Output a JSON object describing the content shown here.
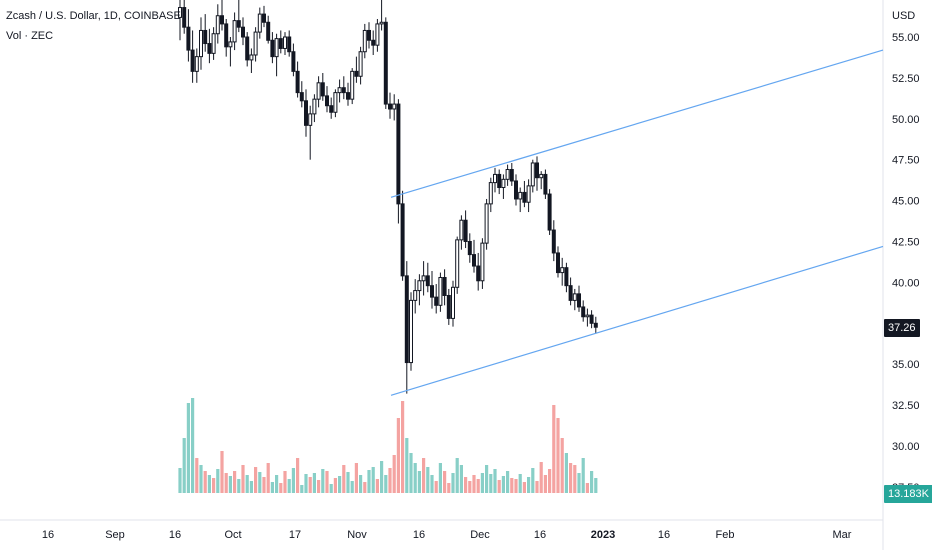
{
  "legend": {
    "symbol": "Zcash / U.S. Dollar, 1D, COINBASE",
    "volume": "Vol · ZEC"
  },
  "price_axis": {
    "currency": "USD",
    "last_price": "37.26",
    "last_volume": "13.183K"
  },
  "colors": {
    "candle": "#131722",
    "channel_line": "#64a6f0",
    "volume_up": "#88cfc7",
    "volume_down": "#f4a3a1",
    "last_price_bg": "#131722",
    "last_volume_bg": "#26a69a"
  },
  "chart_data": {
    "type": "candlestick",
    "title": "Zcash / U.S. Dollar, 1D, COINBASE",
    "xlabel": "",
    "ylabel": "USD",
    "y_ticks": [
      "55.00",
      "52.50",
      "50.00",
      "47.50",
      "45.00",
      "42.50",
      "40.00",
      "35.00",
      "32.50",
      "30.00",
      "27.50"
    ],
    "x_ticks": [
      "16",
      "Sep",
      "16",
      "Oct",
      "17",
      "Nov",
      "16",
      "Dec",
      "16",
      "2023",
      "16",
      "Feb",
      "Mar"
    ],
    "ylim": [
      25.5,
      56.5
    ],
    "grid": false,
    "candles": [
      [
        56.2,
        57.5,
        54.8,
        56.8
      ],
      [
        56.8,
        58.0,
        55.2,
        55.6
      ],
      [
        55.6,
        56.7,
        53.5,
        54.2
      ],
      [
        54.2,
        55.4,
        52.2,
        52.9
      ],
      [
        52.9,
        54.3,
        52.2,
        53.8
      ],
      [
        53.8,
        56.2,
        53.0,
        55.4
      ],
      [
        55.4,
        56.4,
        54.1,
        54.6
      ],
      [
        54.6,
        55.5,
        53.4,
        54.0
      ],
      [
        54.0,
        55.6,
        53.6,
        55.2
      ],
      [
        55.2,
        57.0,
        54.6,
        56.3
      ],
      [
        56.3,
        57.4,
        55.4,
        55.8
      ],
      [
        55.8,
        56.1,
        53.8,
        54.4
      ],
      [
        54.4,
        55.0,
        53.2,
        54.7
      ],
      [
        54.7,
        56.5,
        54.2,
        56.0
      ],
      [
        56.0,
        57.4,
        55.3,
        55.6
      ],
      [
        55.6,
        56.2,
        54.5,
        55.0
      ],
      [
        55.0,
        55.3,
        53.2,
        53.6
      ],
      [
        53.6,
        54.3,
        52.8,
        53.9
      ],
      [
        53.9,
        55.6,
        53.5,
        55.3
      ],
      [
        55.3,
        56.8,
        54.9,
        56.4
      ],
      [
        56.4,
        56.9,
        55.6,
        55.9
      ],
      [
        55.9,
        56.3,
        54.6,
        54.8
      ],
      [
        54.8,
        55.3,
        53.4,
        53.8
      ],
      [
        53.8,
        55.2,
        52.6,
        54.9
      ],
      [
        54.9,
        55.4,
        54.0,
        54.3
      ],
      [
        54.3,
        55.3,
        53.9,
        55.0
      ],
      [
        55.0,
        55.4,
        53.8,
        54.1
      ],
      [
        54.1,
        54.6,
        52.6,
        52.9
      ],
      [
        52.9,
        53.5,
        51.3,
        51.6
      ],
      [
        51.6,
        52.3,
        50.7,
        51.1
      ],
      [
        51.1,
        51.8,
        48.9,
        49.6
      ],
      [
        49.6,
        50.8,
        47.5,
        50.3
      ],
      [
        50.3,
        51.5,
        49.8,
        51.2
      ],
      [
        51.2,
        52.6,
        50.7,
        52.2
      ],
      [
        52.2,
        52.8,
        51.1,
        51.4
      ],
      [
        51.4,
        52.0,
        50.4,
        50.8
      ],
      [
        50.8,
        51.3,
        50.0,
        50.4
      ],
      [
        50.4,
        51.8,
        50.1,
        51.6
      ],
      [
        51.6,
        52.4,
        51.0,
        51.9
      ],
      [
        51.9,
        52.6,
        51.2,
        51.6
      ],
      [
        51.6,
        52.2,
        50.8,
        51.2
      ],
      [
        51.2,
        53.1,
        50.9,
        52.9
      ],
      [
        52.9,
        53.8,
        52.2,
        52.6
      ],
      [
        52.6,
        54.4,
        52.1,
        54.1
      ],
      [
        54.1,
        55.8,
        53.7,
        55.4
      ],
      [
        55.4,
        55.9,
        54.3,
        54.8
      ],
      [
        54.8,
        55.4,
        53.9,
        54.5
      ],
      [
        54.5,
        56.1,
        54.1,
        55.8
      ],
      [
        55.8,
        57.5,
        55.4,
        55.9
      ],
      [
        55.9,
        56.2,
        50.6,
        50.9
      ],
      [
        50.9,
        51.6,
        50.0,
        50.6
      ],
      [
        50.6,
        51.5,
        49.9,
        50.9
      ],
      [
        50.9,
        51.2,
        43.6,
        44.8
      ],
      [
        44.8,
        45.6,
        40.1,
        40.4
      ],
      [
        40.4,
        41.3,
        33.2,
        35.1
      ],
      [
        35.1,
        39.4,
        34.6,
        38.9
      ],
      [
        38.9,
        40.2,
        38.1,
        39.5
      ],
      [
        39.5,
        40.5,
        38.6,
        40.1
      ],
      [
        40.1,
        41.3,
        39.2,
        40.4
      ],
      [
        40.4,
        41.2,
        39.4,
        39.8
      ],
      [
        39.8,
        40.7,
        38.4,
        39.1
      ],
      [
        39.1,
        39.9,
        38.1,
        38.6
      ],
      [
        38.6,
        40.6,
        38.2,
        40.3
      ],
      [
        40.3,
        40.8,
        38.6,
        39.2
      ],
      [
        39.2,
        39.6,
        37.4,
        37.8
      ],
      [
        37.8,
        40.1,
        37.3,
        39.7
      ],
      [
        39.7,
        42.8,
        39.3,
        42.6
      ],
      [
        42.6,
        44.1,
        42.0,
        43.8
      ],
      [
        43.8,
        44.4,
        42.1,
        42.5
      ],
      [
        42.5,
        43.0,
        41.2,
        41.7
      ],
      [
        41.7,
        42.6,
        40.6,
        41.0
      ],
      [
        41.0,
        41.8,
        39.5,
        40.1
      ],
      [
        40.1,
        42.7,
        39.6,
        42.4
      ],
      [
        42.4,
        45.1,
        42.0,
        44.8
      ],
      [
        44.8,
        46.4,
        44.3,
        46.1
      ],
      [
        46.1,
        47.0,
        45.5,
        46.6
      ],
      [
        46.6,
        46.9,
        45.4,
        45.8
      ],
      [
        45.8,
        46.6,
        45.1,
        46.3
      ],
      [
        46.3,
        47.2,
        45.9,
        46.9
      ],
      [
        46.9,
        47.3,
        45.9,
        46.2
      ],
      [
        46.2,
        46.6,
        44.7,
        45.1
      ],
      [
        45.1,
        45.8,
        44.3,
        45.5
      ],
      [
        45.5,
        46.2,
        44.6,
        44.9
      ],
      [
        44.9,
        46.3,
        44.3,
        45.9
      ],
      [
        45.9,
        47.5,
        45.5,
        47.3
      ],
      [
        47.3,
        47.7,
        45.6,
        46.4
      ],
      [
        46.4,
        46.8,
        45.7,
        46.6
      ],
      [
        46.6,
        46.9,
        45.1,
        45.4
      ],
      [
        45.4,
        45.7,
        42.9,
        43.2
      ],
      [
        43.2,
        43.8,
        41.3,
        41.8
      ],
      [
        41.8,
        42.2,
        40.3,
        40.6
      ],
      [
        40.6,
        41.5,
        39.8,
        40.9
      ],
      [
        40.9,
        41.2,
        39.4,
        39.8
      ],
      [
        39.8,
        40.3,
        38.6,
        38.9
      ],
      [
        38.9,
        39.6,
        38.3,
        39.3
      ],
      [
        39.3,
        39.8,
        38.2,
        38.5
      ],
      [
        38.5,
        38.9,
        37.6,
        37.9
      ],
      [
        37.9,
        38.4,
        37.3,
        38.0
      ],
      [
        38.0,
        38.3,
        37.2,
        37.5
      ],
      [
        37.5,
        37.9,
        36.9,
        37.26
      ]
    ],
    "volume": [
      [
        0.25,
        1
      ],
      [
        0.55,
        1
      ],
      [
        0.9,
        1
      ],
      [
        0.95,
        1
      ],
      [
        0.35,
        0
      ],
      [
        0.28,
        1
      ],
      [
        0.22,
        0
      ],
      [
        0.18,
        1
      ],
      [
        0.15,
        0
      ],
      [
        0.24,
        1
      ],
      [
        0.42,
        0
      ],
      [
        0.2,
        0
      ],
      [
        0.17,
        1
      ],
      [
        0.22,
        0
      ],
      [
        0.14,
        1
      ],
      [
        0.28,
        0
      ],
      [
        0.18,
        1
      ],
      [
        0.12,
        1
      ],
      [
        0.26,
        0
      ],
      [
        0.21,
        1
      ],
      [
        0.16,
        0
      ],
      [
        0.3,
        0
      ],
      [
        0.11,
        1
      ],
      [
        0.18,
        1
      ],
      [
        0.1,
        0
      ],
      [
        0.22,
        0
      ],
      [
        0.14,
        1
      ],
      [
        0.25,
        1
      ],
      [
        0.35,
        0
      ],
      [
        0.08,
        1
      ],
      [
        0.19,
        1
      ],
      [
        0.16,
        0
      ],
      [
        0.2,
        1
      ],
      [
        0.13,
        0
      ],
      [
        0.24,
        1
      ],
      [
        0.22,
        0
      ],
      [
        0.09,
        1
      ],
      [
        0.15,
        0
      ],
      [
        0.17,
        1
      ],
      [
        0.28,
        0
      ],
      [
        0.21,
        1
      ],
      [
        0.12,
        1
      ],
      [
        0.3,
        0
      ],
      [
        0.18,
        1
      ],
      [
        0.11,
        0
      ],
      [
        0.23,
        1
      ],
      [
        0.26,
        1
      ],
      [
        0.14,
        0
      ],
      [
        0.32,
        1
      ],
      [
        0.18,
        1
      ],
      [
        0.25,
        0
      ],
      [
        0.38,
        0
      ],
      [
        0.75,
        0
      ],
      [
        0.92,
        0
      ],
      [
        0.55,
        1
      ],
      [
        0.4,
        1
      ],
      [
        0.3,
        1
      ],
      [
        0.22,
        1
      ],
      [
        0.35,
        0
      ],
      [
        0.26,
        1
      ],
      [
        0.18,
        1
      ],
      [
        0.12,
        0
      ],
      [
        0.3,
        1
      ],
      [
        0.22,
        0
      ],
      [
        0.1,
        0
      ],
      [
        0.2,
        1
      ],
      [
        0.35,
        1
      ],
      [
        0.28,
        1
      ],
      [
        0.16,
        0
      ],
      [
        0.12,
        0
      ],
      [
        0.18,
        0
      ],
      [
        0.14,
        0
      ],
      [
        0.2,
        1
      ],
      [
        0.28,
        1
      ],
      [
        0.19,
        1
      ],
      [
        0.24,
        1
      ],
      [
        0.13,
        0
      ],
      [
        0.17,
        1
      ],
      [
        0.22,
        1
      ],
      [
        0.15,
        0
      ],
      [
        0.14,
        0
      ],
      [
        0.19,
        1
      ],
      [
        0.11,
        0
      ],
      [
        0.16,
        1
      ],
      [
        0.25,
        1
      ],
      [
        0.12,
        0
      ],
      [
        0.31,
        0
      ],
      [
        0.18,
        0
      ],
      [
        0.24,
        0
      ],
      [
        0.88,
        0
      ],
      [
        0.75,
        0
      ],
      [
        0.55,
        0
      ],
      [
        0.4,
        1
      ],
      [
        0.3,
        0
      ],
      [
        0.28,
        0
      ],
      [
        0.2,
        1
      ],
      [
        0.35,
        1
      ],
      [
        0.1,
        0
      ],
      [
        0.22,
        1
      ],
      [
        0.15,
        1
      ]
    ],
    "channel": {
      "upper": {
        "from": [
          "2022-11-08",
          45.2
        ],
        "to": [
          "2023-03-31",
          54.2
        ]
      },
      "lower": {
        "from": [
          "2022-11-08",
          33.1
        ],
        "to": [
          "2023-03-31",
          42.2
        ]
      }
    }
  }
}
